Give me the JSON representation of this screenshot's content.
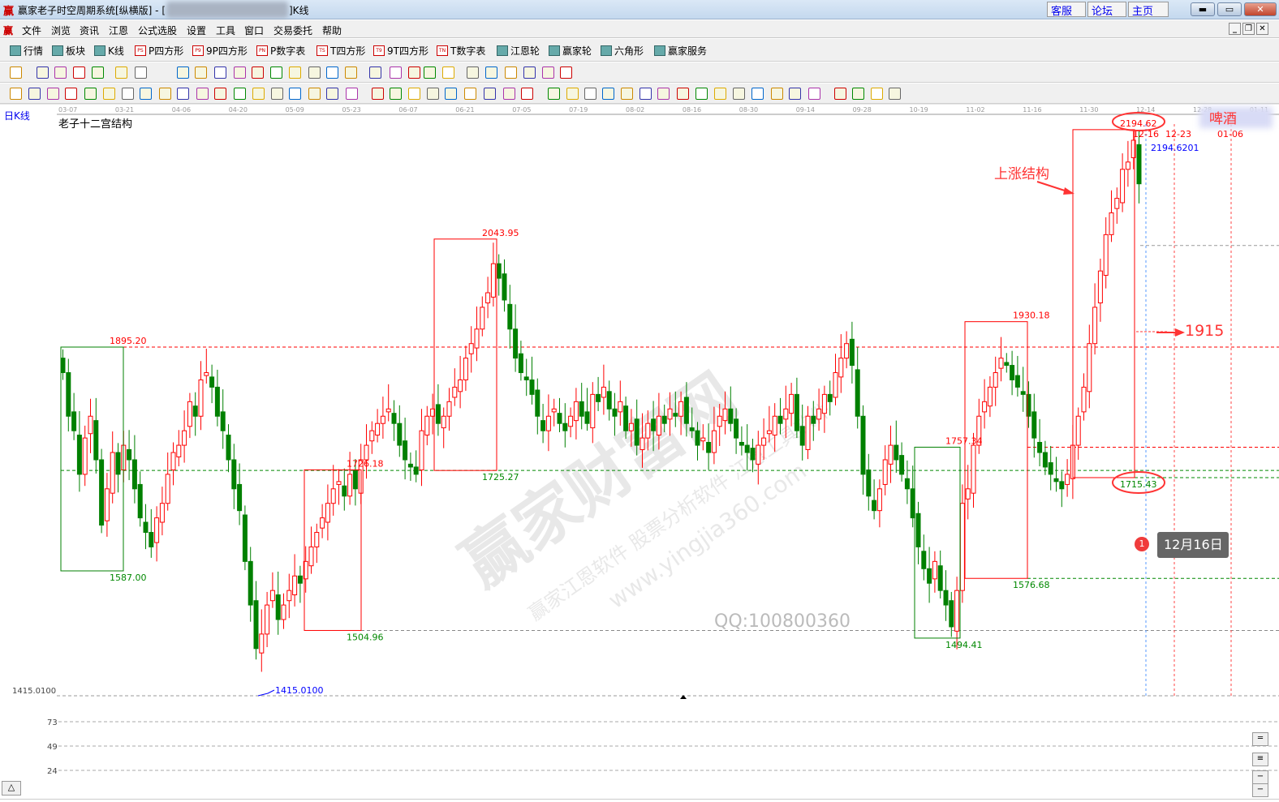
{
  "window": {
    "logo": "赢",
    "title": "赢家老子时空周期系统[纵横版] - [",
    "title_suffix": "]K线",
    "links": [
      "客服",
      "论坛",
      "主页"
    ]
  },
  "menu": {
    "logo": "赢",
    "items": [
      "文件",
      "浏览",
      "资讯",
      "江恩",
      "公式选股",
      "设置",
      "工具",
      "窗口",
      "交易委托",
      "帮助"
    ]
  },
  "toolbar1": [
    {
      "icon": "grid-table-icon",
      "label": "行情"
    },
    {
      "icon": "blocks-icon",
      "label": "板块"
    },
    {
      "icon": "kline-icon",
      "label": "K线"
    },
    {
      "icon": "ps-icon",
      "tag": "PS",
      "label": "P四方形"
    },
    {
      "icon": "p9-icon",
      "tag": "P9",
      "label": "9P四方形"
    },
    {
      "icon": "pn-icon",
      "tag": "PN",
      "label": "P数字表"
    },
    {
      "icon": "ts-icon",
      "tag": "TS",
      "label": "T四方形"
    },
    {
      "icon": "t9-icon",
      "tag": "T9",
      "label": "9T四方形"
    },
    {
      "icon": "tn-icon",
      "tag": "TN",
      "label": "T数字表"
    },
    {
      "icon": "gann-wheel-icon",
      "label": "江恩轮"
    },
    {
      "icon": "winner-wheel-icon",
      "label": "赢家轮"
    },
    {
      "icon": "hexagon-icon",
      "label": "六角形"
    },
    {
      "icon": "dollar-icon",
      "label": "赢家服务"
    }
  ],
  "chart": {
    "period_label": "日K线",
    "indicator_title": "老子十二宫结构",
    "date_ticks": [
      "03-07",
      "03-21",
      "04-06",
      "04-20",
      "05-09",
      "05-23",
      "06-07",
      "06-21",
      "07-05",
      "07-19",
      "08-02",
      "08-16",
      "08-30",
      "09-14",
      "09-28",
      "10-19",
      "11-02",
      "11-16",
      "11-30",
      "12-14",
      "12-28",
      "01-11"
    ],
    "y_axis_low_label": "1415.0100",
    "sub_axis_labels": [
      "73",
      "49",
      "24"
    ],
    "colors": {
      "up": "#ff0000",
      "down": "#008000",
      "box_red": "#ff0000",
      "box_green": "#008000",
      "annotation": "#ff3333",
      "marker": "#0000ff"
    },
    "closes": [
      1860,
      1800,
      1780,
      1720,
      1770,
      1800,
      1740,
      1650,
      1700,
      1750,
      1720,
      1760,
      1740,
      1700,
      1660,
      1640,
      1620,
      1660,
      1680,
      1720,
      1750,
      1760,
      1780,
      1820,
      1800,
      1850,
      1860,
      1840,
      1800,
      1780,
      1740,
      1700,
      1670,
      1600,
      1540,
      1480,
      1500,
      1540,
      1560,
      1520,
      1540,
      1560,
      1580,
      1570,
      1600,
      1620,
      1640,
      1660,
      1680,
      1700,
      1710,
      1690,
      1720,
      1700,
      1740,
      1760,
      1780,
      1790,
      1800,
      1810,
      1790,
      1760,
      1740,
      1730,
      1720,
      1780,
      1800,
      1810,
      1790,
      1800,
      1820,
      1840,
      1850,
      1880,
      1900,
      1920,
      1950,
      1970,
      2010,
      1990,
      1960,
      1920,
      1880,
      1860,
      1850,
      1830,
      1800,
      1780,
      1800,
      1810,
      1790,
      1780,
      1800,
      1820,
      1800,
      1790,
      1830,
      1820,
      1840,
      1810,
      1800,
      1820,
      1780,
      1790,
      1760,
      1770,
      1790,
      1780,
      1800,
      1790,
      1810,
      1800,
      1820,
      1790,
      1780,
      1760,
      1770,
      1750,
      1780,
      1800,
      1810,
      1790,
      1770,
      1760,
      1750,
      1740,
      1760,
      1770,
      1780,
      1800,
      1790,
      1810,
      1830,
      1780,
      1760,
      1800,
      1790,
      1810,
      1830,
      1820,
      1860,
      1880,
      1900,
      1870,
      1800,
      1720,
      1690,
      1670,
      1700,
      1740,
      1760,
      1740,
      1720,
      1700,
      1660,
      1620,
      1590,
      1570,
      1600,
      1560,
      1540,
      1510,
      1560,
      1680,
      1700,
      1760,
      1800,
      1820,
      1840,
      1860,
      1880,
      1870,
      1850,
      1840,
      1830,
      1800,
      1770,
      1750,
      1730,
      1720,
      1710,
      1700,
      1720,
      1760,
      1800,
      1840,
      1900,
      1950,
      2000,
      2050,
      2080,
      2100,
      2140,
      2150,
      2180,
      2120
    ],
    "structure_boxes": [
      {
        "high": "1895.20",
        "low": "1587.00",
        "color": "green"
      },
      {
        "high": "1726.18",
        "low": "1504.96",
        "color": "red"
      },
      {
        "high": "2043.95",
        "low": "1725.27",
        "color": "red"
      },
      {
        "high": "1757.34",
        "low": "1494.41",
        "color": "green"
      },
      {
        "high": "1930.18",
        "low": "1576.68",
        "color": "red"
      },
      {
        "high": "2194.62",
        "low": "1715.43",
        "color": "red"
      }
    ],
    "low_marker": "1415.0100",
    "top_marker": "2194.6201",
    "cycle_dates": [
      "12-16",
      "12-23",
      "01-06"
    ],
    "annotations": {
      "rise_structure": "上涨结构",
      "target": "1915",
      "stock_name": "啤酒"
    },
    "tooltip": {
      "badge": "1",
      "text": "12月16日"
    },
    "watermark": {
      "main": "赢家财富网",
      "sub1": "赢家江恩软件 股票分析软件 江恩工具软件",
      "url": "www.yingjia360.com",
      "qq": "QQ:100800360"
    }
  }
}
